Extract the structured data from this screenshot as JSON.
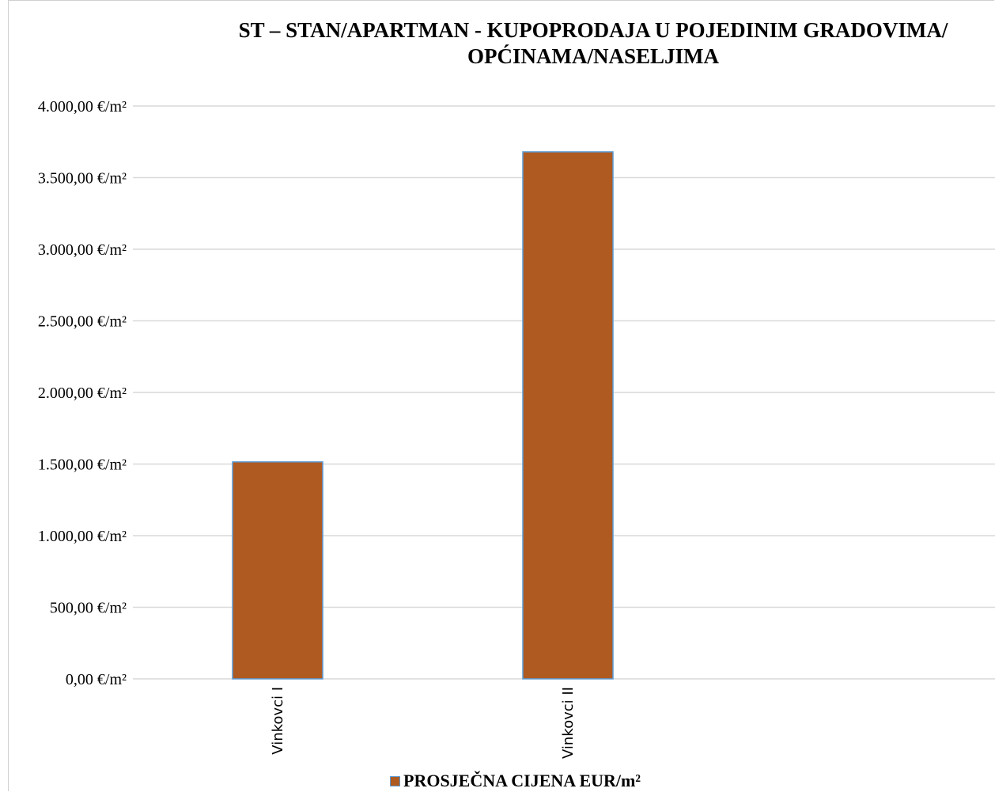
{
  "chart_data": {
    "type": "bar",
    "title_lines": [
      "ST – STAN/APARTMAN - KUPOPRODAJA U POJEDINIM GRADOVIMA/",
      "OPĆINAMA/NASELJIMA"
    ],
    "categories": [
      "Vinkovci I",
      "Vinkovci II"
    ],
    "series": [
      {
        "name": "PROSJEČNA CIJENA EUR/m²",
        "values": [
          1515,
          3680
        ]
      }
    ],
    "y_ticks": [
      0,
      500,
      1000,
      1500,
      2000,
      2500,
      3000,
      3500,
      4000
    ],
    "y_tick_labels": [
      "0,00 €/m²",
      "500,00 €/m²",
      "1.000,00 €/m²",
      "1.500,00 €/m²",
      "2.000,00 €/m²",
      "2.500,00 €/m²",
      "3.000,00 €/m²",
      "3.500,00 €/m²",
      "4.000,00 €/m²"
    ],
    "ylim": [
      0,
      4000
    ],
    "grid": true,
    "legend_position": "bottom",
    "colors": {
      "bar_fill": "#ae5a21",
      "bar_border": "#5b9bd5",
      "grid": "#d9d9d9"
    }
  }
}
